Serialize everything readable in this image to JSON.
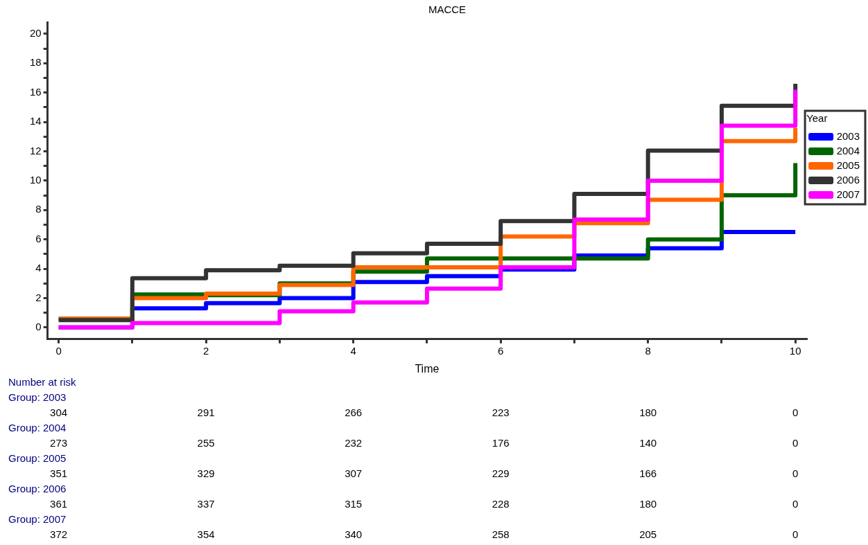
{
  "chart_data": {
    "type": "step",
    "title": "MACCE",
    "xlabel": "Time",
    "legend_title": "Year",
    "legend": "right",
    "grid": false,
    "line_style": "solid",
    "marker": "none",
    "x": [
      0,
      1,
      2,
      3,
      4,
      5,
      6,
      7,
      8,
      9,
      10
    ],
    "series": [
      {
        "name": "2003",
        "color": "#0000ff",
        "values": [
          0,
          1.3,
          1.65,
          2.0,
          3.1,
          3.5,
          3.95,
          4.9,
          5.4,
          6.5,
          6.5
        ]
      },
      {
        "name": "2004",
        "color": "#006400",
        "values": [
          0.6,
          2.25,
          2.2,
          3.0,
          3.8,
          4.7,
          4.7,
          4.7,
          6.0,
          9.0,
          11.2
        ]
      },
      {
        "name": "2005",
        "color": "#ff6600",
        "values": [
          0.6,
          2.0,
          2.3,
          2.9,
          4.1,
          4.1,
          6.2,
          7.1,
          8.7,
          12.7,
          13.6
        ]
      },
      {
        "name": "2006",
        "color": "#333333",
        "values": [
          0.5,
          3.35,
          3.9,
          4.2,
          5.05,
          5.7,
          7.25,
          9.1,
          12.05,
          15.1,
          16.6
        ]
      },
      {
        "name": "2007",
        "color": "#ff00ff",
        "values": [
          0,
          0.3,
          0.3,
          1.1,
          1.7,
          2.65,
          4.1,
          7.35,
          10.0,
          13.75,
          16.2
        ]
      }
    ],
    "xlim": [
      -0.15,
      10.15
    ],
    "xticks": [
      0,
      {
        "value": 1,
        "label": null
      },
      2,
      {
        "value": 3,
        "label": null
      },
      4,
      {
        "value": 5,
        "label": null
      },
      6,
      {
        "value": 7,
        "label": null
      },
      8,
      {
        "value": 9,
        "label": null
      },
      10
    ],
    "ylim": [
      -0.8,
      20.8
    ],
    "yticks": [
      0,
      {
        "value": 1,
        "label": null
      },
      2,
      {
        "value": 3,
        "label": null
      },
      4,
      {
        "value": 5,
        "label": null
      },
      6,
      {
        "value": 7,
        "label": null
      },
      8,
      {
        "value": 9,
        "label": null
      },
      10,
      {
        "value": 11,
        "label": null
      },
      12,
      {
        "value": 13,
        "label": null
      },
      14,
      {
        "value": 15,
        "label": null
      },
      16,
      {
        "value": 17,
        "label": null
      },
      18,
      {
        "value": 19,
        "label": null
      },
      20
    ],
    "annotations": [
      "Number at risk",
      "Group: 2003",
      "304",
      "291",
      "266",
      "223",
      "180",
      "0",
      "Group: 2004",
      "273",
      "255",
      "232",
      "176",
      "140",
      "0",
      "Group: 2005",
      "351",
      "329",
      "307",
      "229",
      "166",
      "0",
      "Group: 2006",
      "361",
      "337",
      "315",
      "228",
      "180",
      "0",
      "Group: 2007",
      "372",
      "354",
      "340",
      "258",
      "205",
      "0"
    ]
  }
}
